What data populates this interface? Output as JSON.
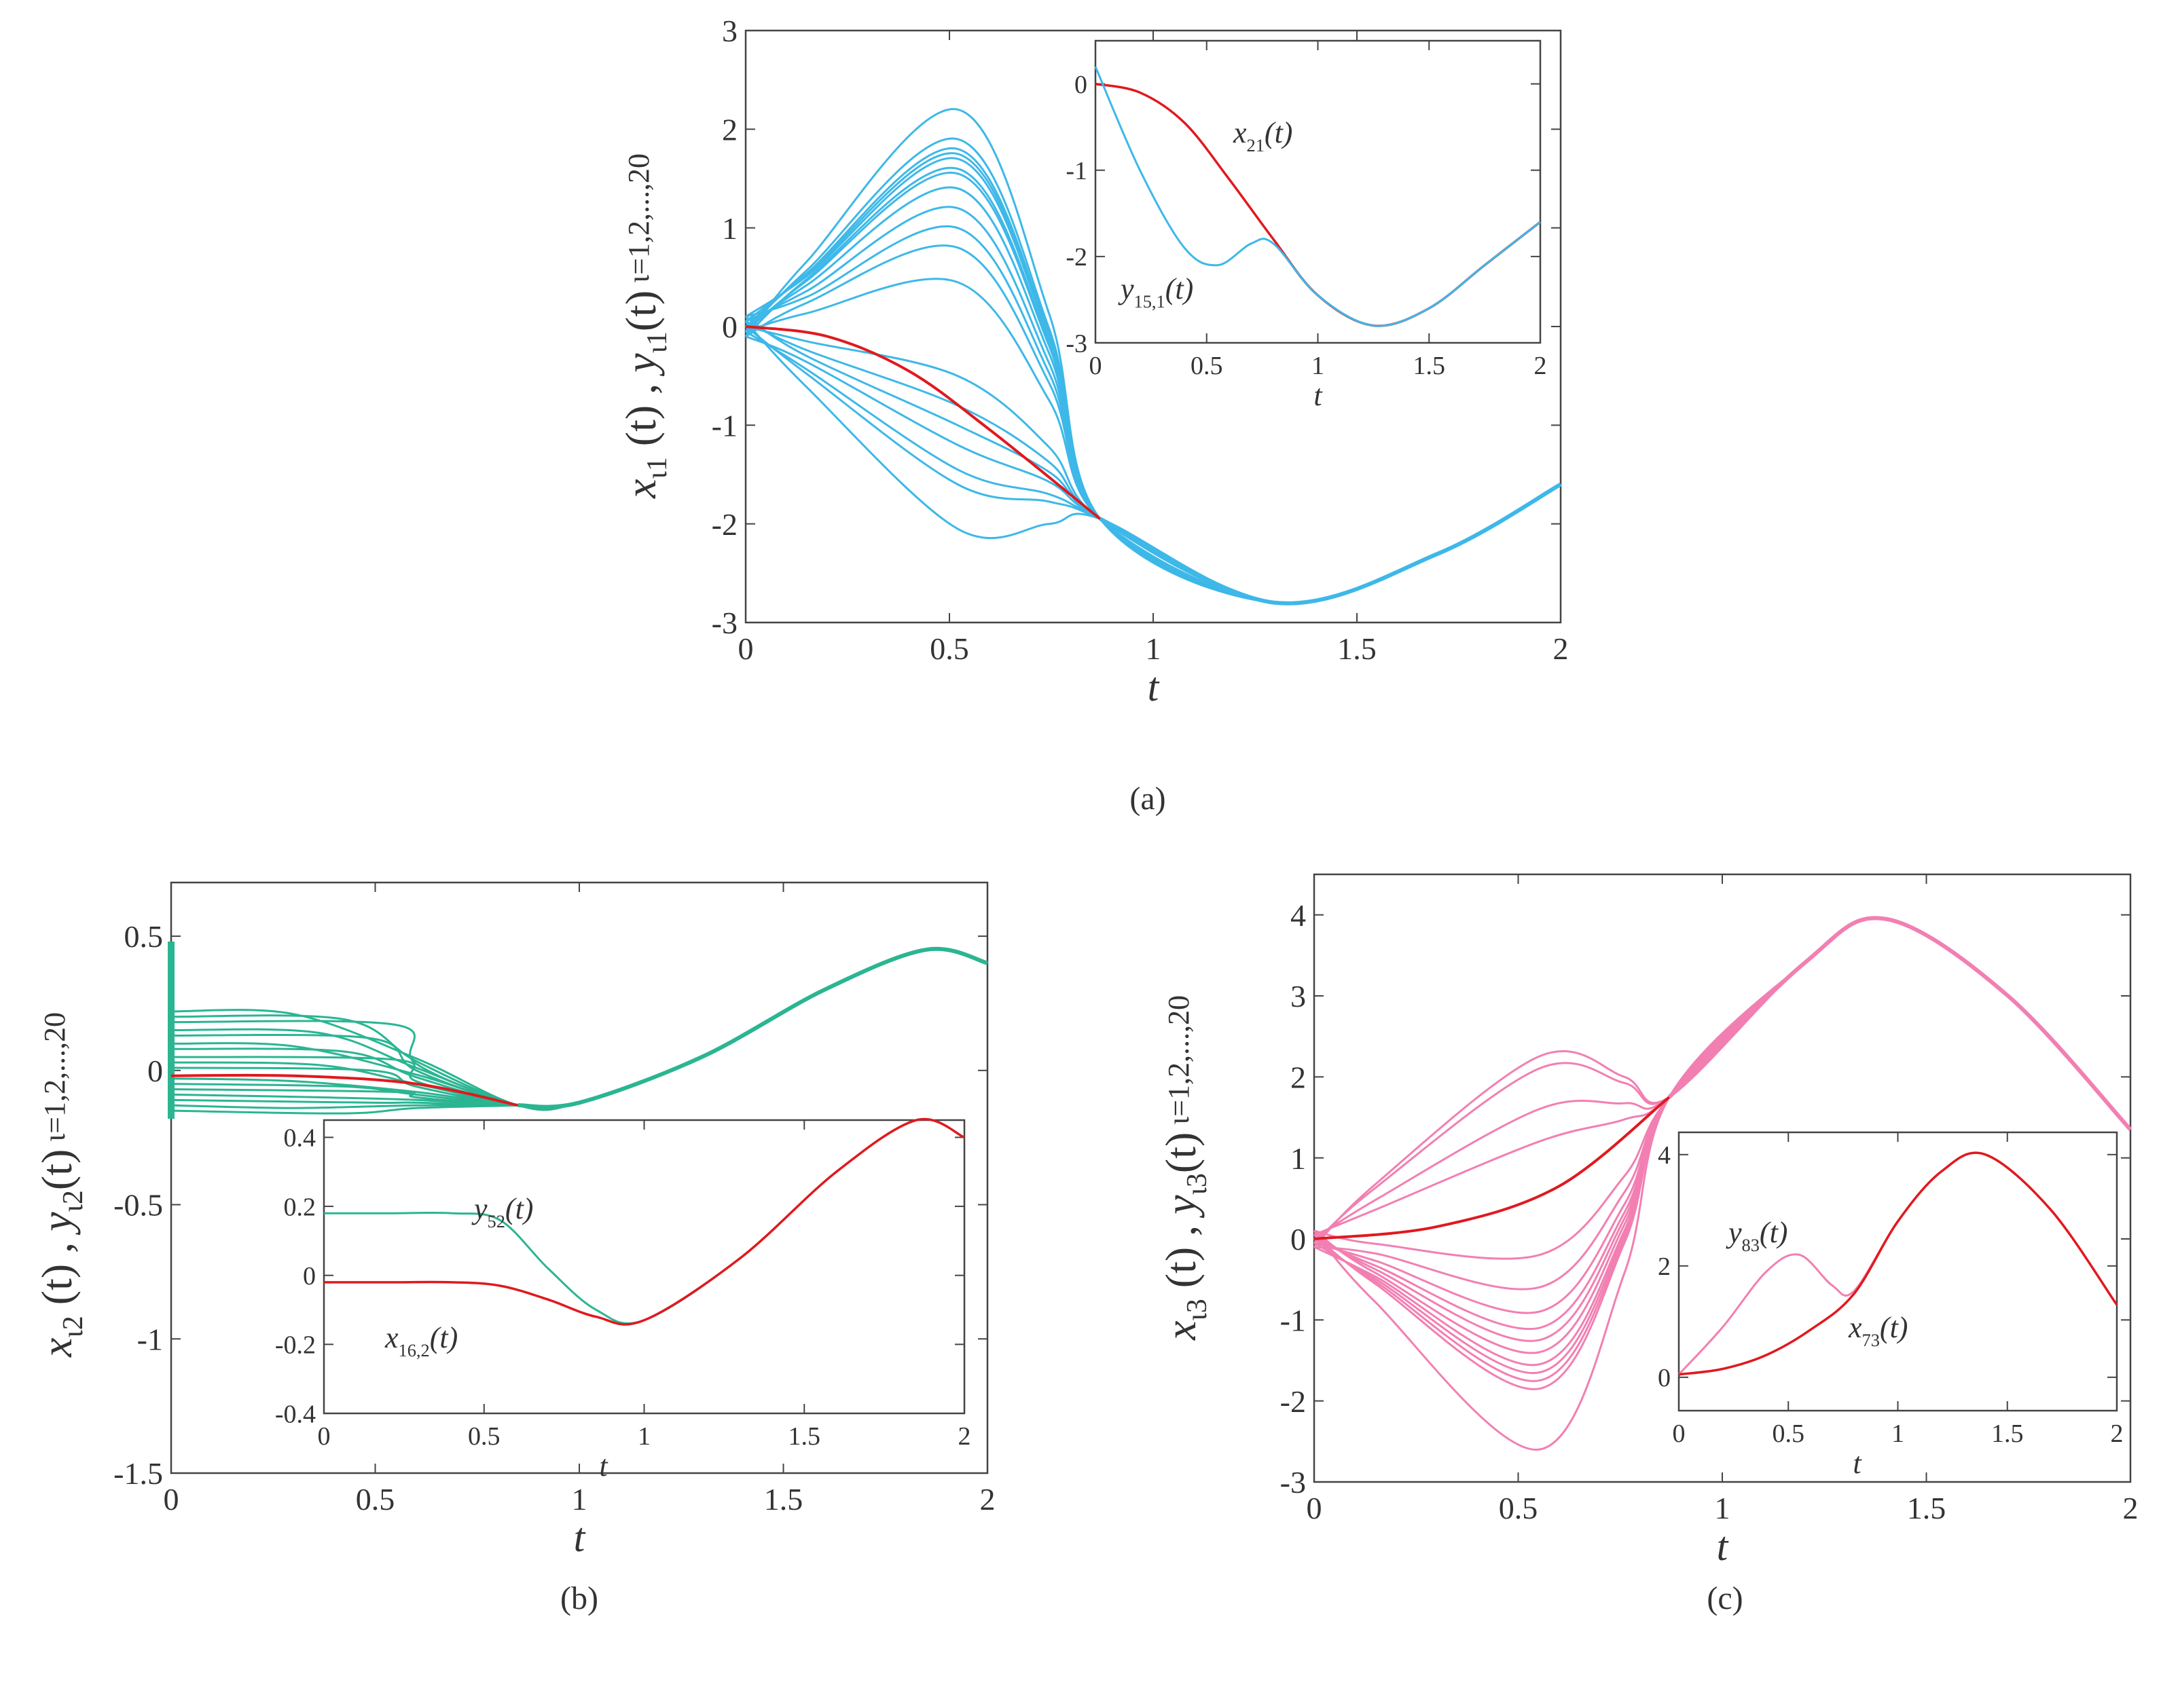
{
  "chart_data": [
    {
      "panel": "a",
      "type": "line",
      "caption": "(a)",
      "xlabel": "t",
      "ylabel": "x_{ι1}(t) , y_{ι1}(t) ι=1,2,...,20",
      "ylabel_parts": {
        "x": "x",
        "xsub": "ι1",
        "sep": "(t) ,",
        "y": "y",
        "ysub": "ι1",
        "t": "(t)",
        "range": "ι=1,2,...,20"
      },
      "xlim": [
        0,
        2
      ],
      "ylim": [
        -3,
        3
      ],
      "xticks": [
        "0",
        "0.5",
        "1",
        "1.5",
        "2"
      ],
      "yticks": [
        "-3",
        "-2",
        "-1",
        "0",
        "1",
        "2",
        "3"
      ],
      "colors": {
        "followers": "#3db8e8",
        "leader": "#e0191e"
      },
      "converge": {
        "t": 0.87,
        "y": -1.95
      },
      "leader_path": {
        "t": [
          0,
          0.2,
          0.4,
          0.6,
          0.87,
          1.3,
          1.7,
          2.0
        ],
        "y": [
          0,
          -0.1,
          -0.45,
          -1.05,
          -1.95,
          -2.8,
          -2.3,
          -1.6
        ]
      },
      "follower_peaks": [
        2.2,
        1.9,
        1.8,
        1.75,
        1.7,
        1.6,
        1.55,
        1.4,
        1.2,
        1.0,
        0.8,
        0.45,
        -0.5,
        -0.8,
        -1.0,
        -1.2,
        -1.45,
        -1.6,
        -2.05
      ],
      "inset": {
        "xlim": [
          0,
          2
        ],
        "ylim": [
          -3,
          0.5
        ],
        "xlabel": "t",
        "xticks": [
          "0",
          "0.5",
          "1",
          "1.5",
          "2"
        ],
        "yticks": [
          "-3",
          "-2",
          "-1",
          "0"
        ],
        "series": [
          {
            "name": "x21(t)",
            "t": [
              0,
              0.2,
              0.4,
              0.6,
              0.8,
              1.0,
              1.25,
              1.5,
              1.75,
              2.0
            ],
            "y": [
              0,
              -0.1,
              -0.45,
              -1.1,
              -1.8,
              -2.45,
              -2.8,
              -2.6,
              -2.1,
              -1.6
            ]
          },
          {
            "name": "y15,1(t)",
            "t": [
              0,
              0.2,
              0.4,
              0.55,
              0.7,
              0.8,
              1.0,
              1.25,
              1.5,
              1.75,
              2.0
            ],
            "y": [
              0.2,
              -1.0,
              -1.9,
              -2.1,
              -1.85,
              -1.85,
              -2.45,
              -2.8,
              -2.6,
              -2.1,
              -1.6
            ]
          }
        ],
        "labels": {
          "x": "x",
          "xsub": "21",
          "y": "y",
          "ysub": "15,1",
          "t": "(t)"
        }
      }
    },
    {
      "panel": "b",
      "type": "line",
      "caption": "(b)",
      "xlabel": "t",
      "ylabel": "x_{ι2}(t) , y_{ι2}(t) ι=1,2,...,20",
      "ylabel_parts": {
        "x": "x",
        "xsub": "ι2",
        "sep": "(t) ,",
        "y": "y",
        "ysub": "ι2",
        "t": "(t)",
        "range": "ι=1,2,...,20"
      },
      "xlim": [
        0,
        2
      ],
      "ylim": [
        -1.5,
        0.7
      ],
      "xticks": [
        "0",
        "0.5",
        "1",
        "1.5",
        "2"
      ],
      "yticks": [
        "-1.5",
        "-1",
        "-0.5",
        "0",
        "0.5"
      ],
      "colors": {
        "followers": "#2bb592",
        "leader": "#e0191e"
      },
      "converge": {
        "t": 0.85,
        "y": -0.13
      },
      "leader_path": {
        "t": [
          0,
          0.3,
          0.6,
          0.85,
          1.0,
          1.3,
          1.6,
          1.85,
          2.0
        ],
        "y": [
          -0.02,
          -0.02,
          -0.05,
          -0.13,
          -0.12,
          0.05,
          0.3,
          0.45,
          0.4
        ]
      },
      "follower_levels": [
        0.22,
        0.2,
        0.18,
        0.15,
        0.13,
        0.1,
        0.08,
        0.05,
        0.03,
        0.01,
        -0.03,
        -0.05,
        -0.07,
        -0.09,
        -0.11,
        -0.13,
        -0.15
      ],
      "inset": {
        "xlim": [
          0,
          2
        ],
        "ylim": [
          -0.4,
          0.45
        ],
        "xlabel": "t",
        "xticks": [
          "0",
          "0.5",
          "1",
          "1.5",
          "2"
        ],
        "yticks": [
          "-0.4",
          "-0.2",
          "0",
          "0.2",
          "0.4"
        ],
        "series": [
          {
            "name": "y52(t)",
            "t": [
              0,
              0.2,
              0.4,
              0.55,
              0.7,
              0.85,
              1.0,
              1.3,
              1.6,
              1.85,
              2.0
            ],
            "y": [
              0.18,
              0.18,
              0.18,
              0.16,
              0.02,
              -0.1,
              -0.13,
              0.05,
              0.3,
              0.45,
              0.4
            ]
          },
          {
            "name": "x16,2(t)",
            "t": [
              0,
              0.2,
              0.4,
              0.55,
              0.7,
              0.85,
              1.0,
              1.3,
              1.6,
              1.85,
              2.0
            ],
            "y": [
              -0.02,
              -0.02,
              -0.02,
              -0.03,
              -0.07,
              -0.12,
              -0.13,
              0.05,
              0.3,
              0.45,
              0.4
            ]
          }
        ],
        "labels": {
          "y": "y",
          "ysub": "52",
          "x": "x",
          "xsub": "16,2",
          "t": "(t)"
        }
      }
    },
    {
      "panel": "c",
      "type": "line",
      "caption": "(c)",
      "xlabel": "t",
      "ylabel": "x_{ι3}(t) , y_{ι3}(t) ι=1,2,...,20",
      "ylabel_parts": {
        "x": "x",
        "xsub": "ι3",
        "sep": "(t) ,",
        "y": "y",
        "ysub": "ι3",
        "t": "(t)",
        "range": "ι=1,2,...,20"
      },
      "xlim": [
        0,
        2
      ],
      "ylim": [
        -3,
        4.5
      ],
      "xticks": [
        "0",
        "0.5",
        "1",
        "1.5",
        "2"
      ],
      "yticks": [
        "-3",
        "-2",
        "-1",
        "0",
        "1",
        "2",
        "3",
        "4"
      ],
      "colors": {
        "followers": "#f27fb2",
        "leader": "#e0191e"
      },
      "converge": {
        "t": 0.87,
        "y": 1.75
      },
      "leader_path": {
        "t": [
          0,
          0.3,
          0.6,
          0.87,
          1.2,
          1.4,
          1.7,
          2.0
        ],
        "y": [
          0,
          0.15,
          0.65,
          1.75,
          3.4,
          3.95,
          3.0,
          1.35
        ]
      },
      "follower_peaks": [
        2.25,
        2.1,
        1.6,
        1.2,
        -0.2,
        -0.6,
        -0.9,
        -1.1,
        -1.25,
        -1.4,
        -1.55,
        -1.65,
        -1.75,
        -1.85,
        -2.6
      ],
      "inset": {
        "xlim": [
          0,
          2
        ],
        "ylim": [
          -0.6,
          4.4
        ],
        "xlabel": "t",
        "xticks": [
          "0",
          "0.5",
          "1",
          "1.5",
          "2"
        ],
        "yticks": [
          "0",
          "2",
          "4"
        ],
        "series": [
          {
            "name": "y83(t)",
            "t": [
              0,
              0.2,
              0.4,
              0.55,
              0.7,
              0.8,
              1.0,
              1.2,
              1.4,
              1.7,
              2.0
            ],
            "y": [
              0.05,
              0.9,
              1.9,
              2.2,
              1.65,
              1.55,
              2.8,
              3.7,
              4.0,
              3.0,
              1.3
            ]
          },
          {
            "name": "x73(t)",
            "t": [
              0,
              0.2,
              0.4,
              0.6,
              0.8,
              1.0,
              1.2,
              1.4,
              1.7,
              2.0
            ],
            "y": [
              0.05,
              0.15,
              0.4,
              0.85,
              1.5,
              2.8,
              3.7,
              4.0,
              3.0,
              1.3
            ]
          }
        ],
        "labels": {
          "y": "y",
          "ysub": "83",
          "x": "x",
          "xsub": "73",
          "t": "(t)"
        }
      }
    }
  ]
}
